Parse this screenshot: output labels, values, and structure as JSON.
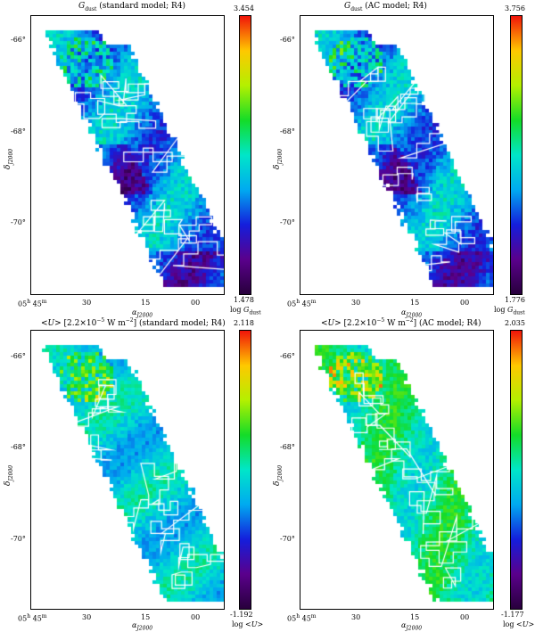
{
  "panels": [
    {
      "title": "G_dust (standard model; R4)",
      "colorbar_max": "3.454",
      "colorbar_min": "1.478",
      "colorbar_label": "log G_dust",
      "ylabel": "δ J2000",
      "xlabel": "α J2000",
      "yticks": [
        "-66°",
        "-68°",
        "-70°"
      ],
      "xticks": [
        "05h 45m",
        "30",
        "15",
        "00"
      ],
      "palette": "low"
    },
    {
      "title": "G_dust (AC model; R4)",
      "colorbar_max": "3.756",
      "colorbar_min": "1.776",
      "colorbar_label": "log G_dust",
      "ylabel": "δ J2000",
      "xlabel": "α J2000",
      "yticks": [
        "-66°",
        "-68°",
        "-70°"
      ],
      "xticks": [
        "05h 45m",
        "30",
        "15",
        "00"
      ],
      "palette": "low"
    },
    {
      "title": "<U> [2.2×10^-5 W m^-2] (standard model; R4)",
      "colorbar_max": "2.118",
      "colorbar_min": "-1.192",
      "colorbar_label": "log <U>",
      "ylabel": "δ J2000",
      "xlabel": "α J2000",
      "yticks": [
        "-66°",
        "-68°",
        "-70°"
      ],
      "xticks": [
        "05h 45m",
        "30",
        "15",
        "00"
      ],
      "palette": "mid"
    },
    {
      "title": "<U> [2.2×10^-5 W m^-2] (AC model; R4)",
      "colorbar_max": "2.035",
      "colorbar_min": "-1.177",
      "colorbar_label": "log <U>",
      "ylabel": "δ J2000",
      "xlabel": "α J2000",
      "yticks": [
        "-66°",
        "-68°",
        "-70°"
      ],
      "xticks": [
        "05h 45m",
        "30",
        "15",
        "00"
      ],
      "palette": "high"
    }
  ]
}
